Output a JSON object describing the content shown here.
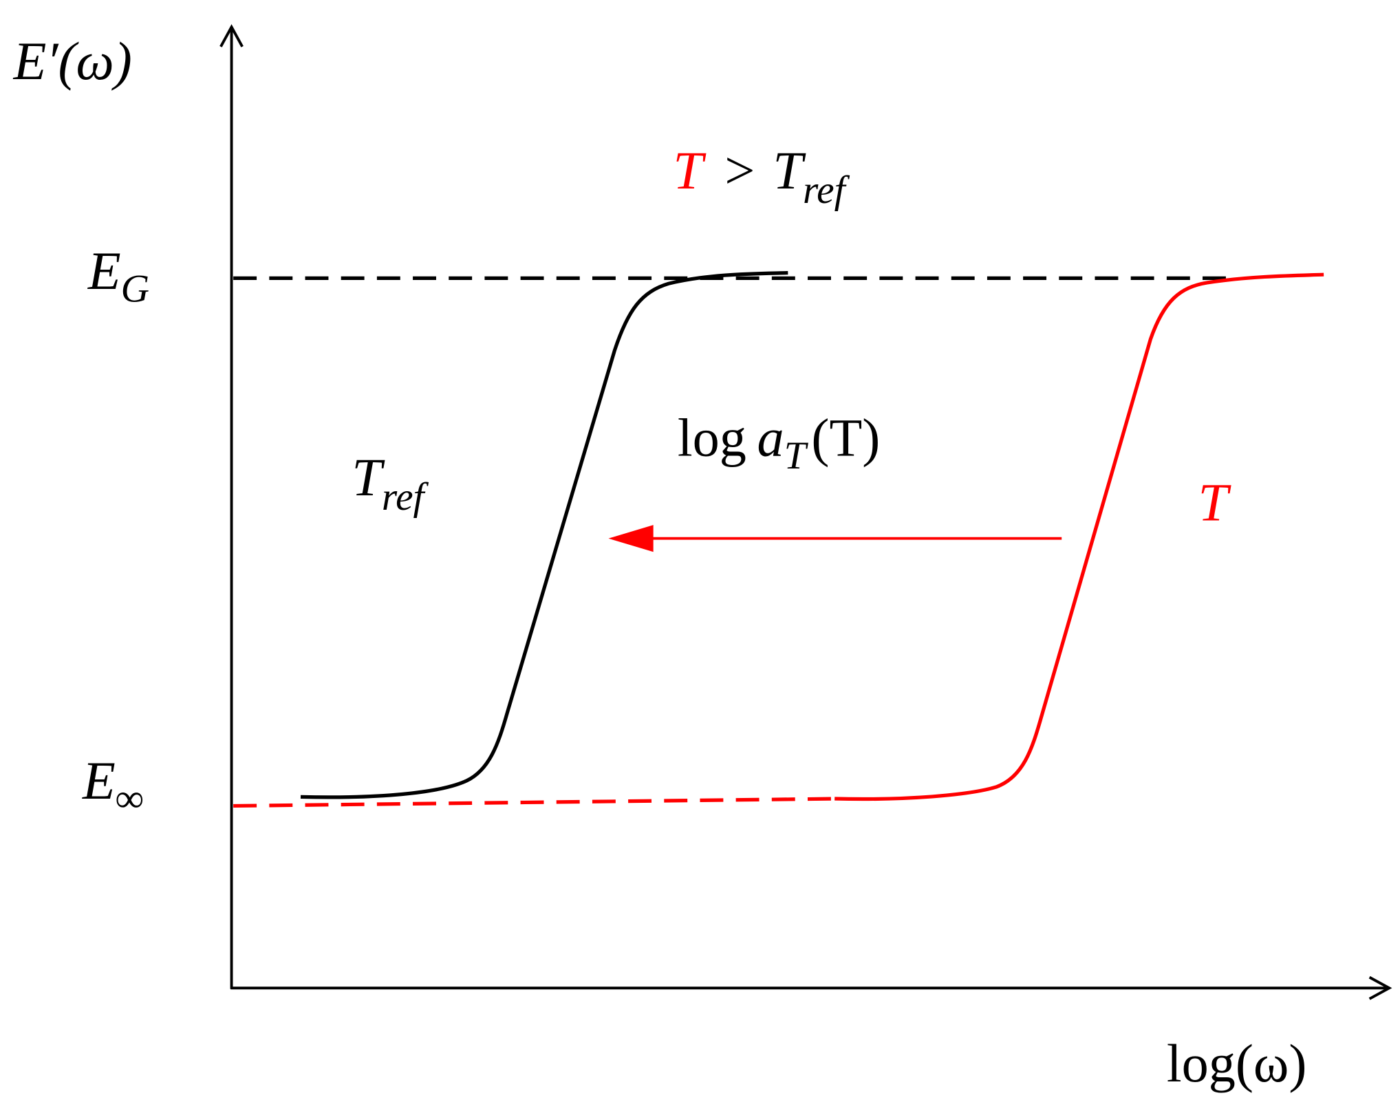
{
  "axes": {
    "y_label": "E′(ω)",
    "x_label": "log(ω)"
  },
  "levels": [
    {
      "symbol": "E",
      "subscript": "G"
    },
    {
      "symbol": "E",
      "subscript": "∞"
    }
  ],
  "condition": {
    "left": "T",
    "operator": ">",
    "right": {
      "symbol": "T",
      "subscript": "ref"
    }
  },
  "shift_label": {
    "prefix": "log",
    "symbol": "a",
    "subscript": "T",
    "argument": "(T)"
  },
  "curves": [
    {
      "label": {
        "symbol": "T",
        "subscript": "ref"
      }
    },
    {
      "label": "T"
    }
  ]
}
